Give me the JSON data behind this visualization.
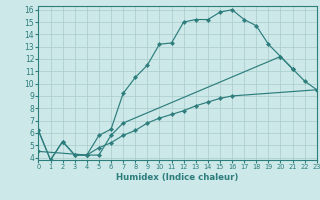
{
  "xlabel": "Humidex (Indice chaleur)",
  "bg_color": "#cce8e8",
  "line_color": "#2d7d7d",
  "grid_color": "#aacccc",
  "curve1_x": [
    0,
    1,
    2,
    3,
    4,
    5,
    6,
    7,
    8,
    9,
    10,
    11,
    12,
    13,
    14,
    15,
    16,
    17,
    18,
    19,
    20,
    21
  ],
  "curve1_y": [
    6.2,
    3.8,
    5.3,
    4.2,
    4.2,
    5.8,
    6.3,
    9.2,
    10.5,
    11.5,
    13.2,
    13.3,
    15.0,
    15.2,
    15.2,
    15.8,
    16.0,
    15.2,
    14.7,
    13.2,
    12.2,
    11.2
  ],
  "curve2_x": [
    0,
    1,
    2,
    3,
    4,
    5,
    6,
    7,
    20,
    21,
    22,
    23
  ],
  "curve2_y": [
    6.2,
    3.8,
    5.3,
    4.2,
    4.2,
    4.2,
    5.8,
    6.8,
    12.2,
    11.2,
    10.2,
    9.5
  ],
  "curve3_x": [
    0,
    4,
    5,
    6,
    7,
    8,
    9,
    10,
    11,
    12,
    13,
    14,
    15,
    16,
    23
  ],
  "curve3_y": [
    4.5,
    4.2,
    4.8,
    5.2,
    5.8,
    6.2,
    6.8,
    7.2,
    7.5,
    7.8,
    8.2,
    8.5,
    8.8,
    9.0,
    9.5
  ],
  "xlim": [
    0,
    23
  ],
  "ylim": [
    3.8,
    16.3
  ],
  "xticks": [
    0,
    1,
    2,
    3,
    4,
    5,
    6,
    7,
    8,
    9,
    10,
    11,
    12,
    13,
    14,
    15,
    16,
    17,
    18,
    19,
    20,
    21,
    22,
    23
  ],
  "yticks": [
    4,
    5,
    6,
    7,
    8,
    9,
    10,
    11,
    12,
    13,
    14,
    15,
    16
  ]
}
